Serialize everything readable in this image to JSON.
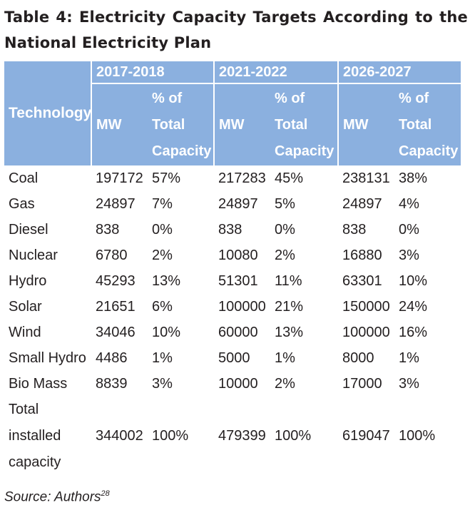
{
  "title": "Table 4: Electricity Capacity Targets According to the National Electricity Plan",
  "header": {
    "technology": "Technology",
    "periods": [
      "2017-2018",
      "2021-2022",
      "2026-2027"
    ],
    "mw": "MW",
    "pct": "% of Total Capacity"
  },
  "rows": [
    {
      "tech": "Coal",
      "mw1": "197172",
      "p1": "57%",
      "mw2": "217283",
      "p2": "45%",
      "mw3": "238131",
      "p3": "38%"
    },
    {
      "tech": "Gas",
      "mw1": "24897",
      "p1": "7%",
      "mw2": "24897",
      "p2": "5%",
      "mw3": "24897",
      "p3": "4%"
    },
    {
      "tech": "Diesel",
      "mw1": "838",
      "p1": "0%",
      "mw2": "838",
      "p2": "0%",
      "mw3": "838",
      "p3": "0%"
    },
    {
      "tech": "Nuclear",
      "mw1": "6780",
      "p1": "2%",
      "mw2": "10080",
      "p2": "2%",
      "mw3": "16880",
      "p3": "3%"
    },
    {
      "tech": "Hydro",
      "mw1": "45293",
      "p1": "13%",
      "mw2": "51301",
      "p2": "11%",
      "mw3": "63301",
      "p3": "10%"
    },
    {
      "tech": "Solar",
      "mw1": "21651",
      "p1": "6%",
      "mw2": "100000",
      "p2": "21%",
      "mw3": "150000",
      "p3": "24%"
    },
    {
      "tech": "Wind",
      "mw1": "34046",
      "p1": "10%",
      "mw2": "60000",
      "p2": "13%",
      "mw3": "100000",
      "p3": "16%"
    },
    {
      "tech": "Small Hydro",
      "mw1": "4486",
      "p1": "1%",
      "mw2": "5000",
      "p2": "1%",
      "mw3": "8000",
      "p3": "1%"
    },
    {
      "tech": "Bio Mass",
      "mw1": "8839",
      "p1": "3%",
      "mw2": "10000",
      "p2": "2%",
      "mw3": "17000",
      "p3": "3%"
    }
  ],
  "total": {
    "tech": "Total installed capacity",
    "mw1": "344002",
    "p1": "100%",
    "mw2": "479399",
    "p2": "100%",
    "mw3": "619047",
    "p3": "100%"
  },
  "source": {
    "text": "Source: Authors",
    "footnote": "28"
  }
}
